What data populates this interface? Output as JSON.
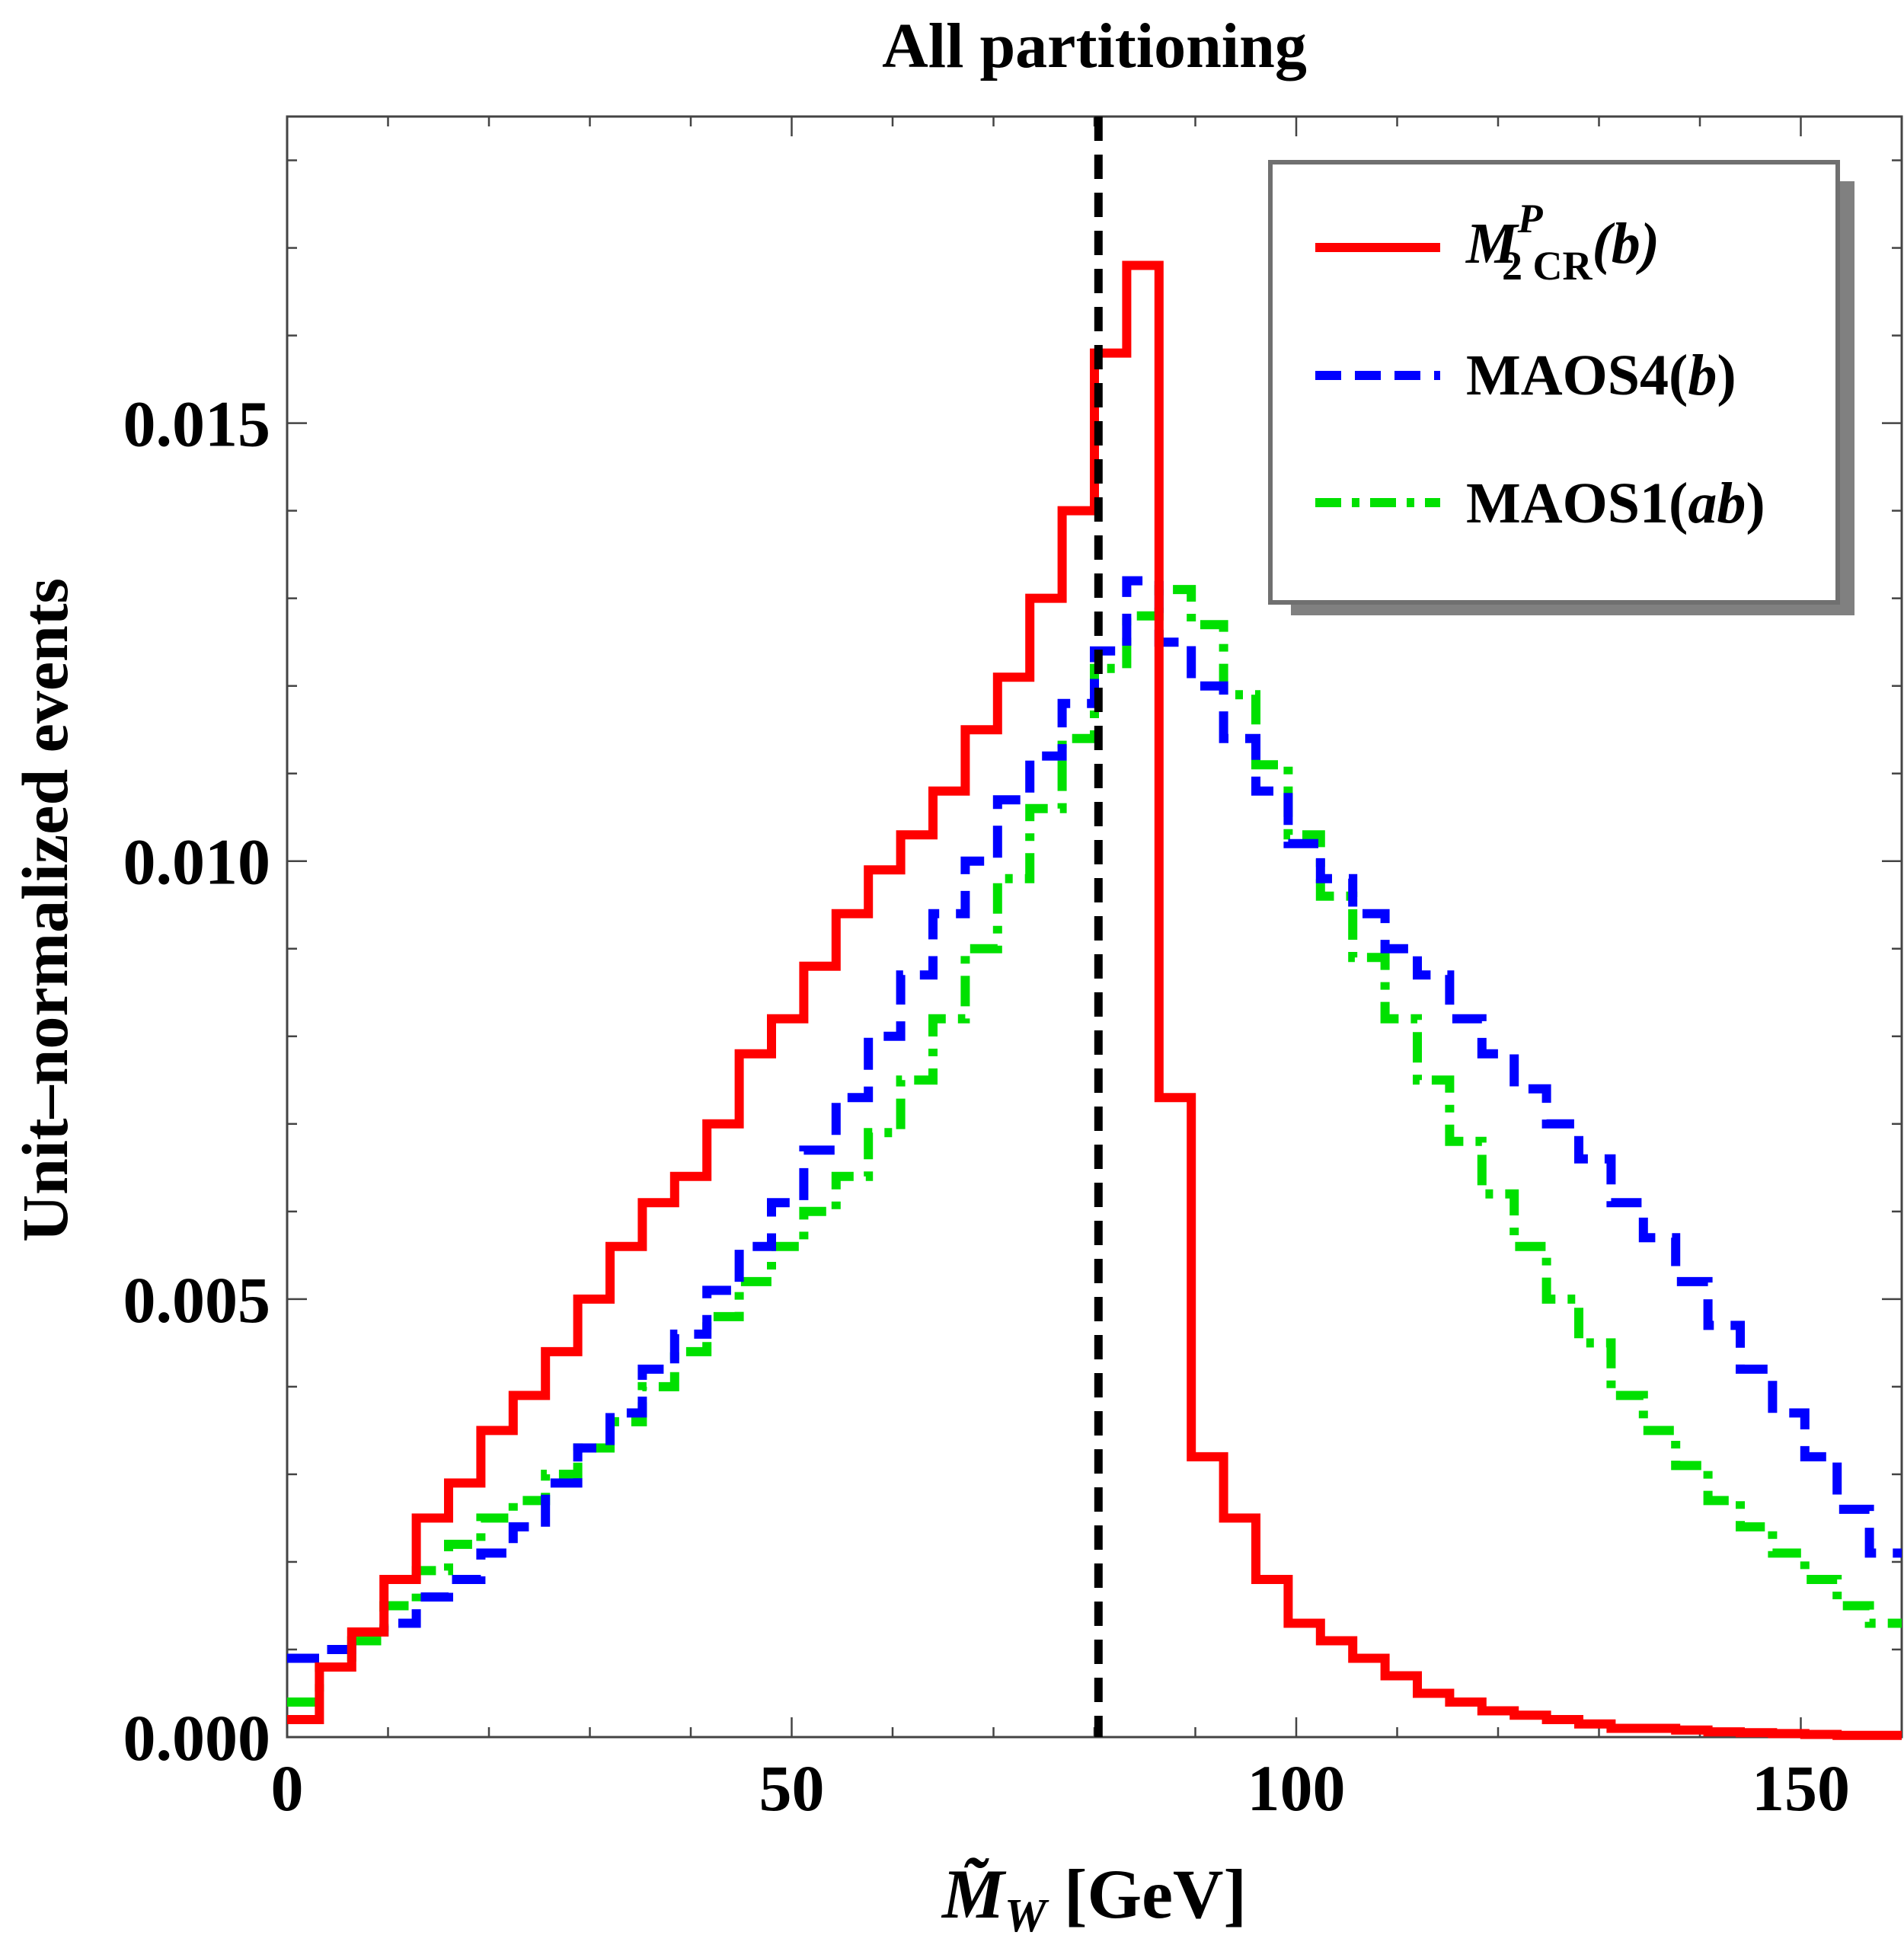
{
  "chart_data": {
    "type": "line",
    "title": "All partitioning",
    "xlabel_symbol": "M̃",
    "xlabel_sub": "W",
    "xlabel_unit": "[GeV]",
    "ylabel": "Unit–normalized events",
    "xlim": [
      0,
      160
    ],
    "ylim": [
      0,
      0.0185
    ],
    "x_ticks": [
      0,
      50,
      100,
      150
    ],
    "x_tick_labels": [
      "0",
      "50",
      "100",
      "150"
    ],
    "y_ticks": [
      0,
      0.005,
      0.01,
      0.015
    ],
    "y_tick_labels": [
      "0.000",
      "0.005",
      "0.010",
      "0.015"
    ],
    "reference_line": {
      "x": 80.4,
      "style": "dashed",
      "color": "#000000"
    },
    "bin_edges": [
      0,
      3.2,
      6.4,
      9.6,
      12.8,
      16,
      19.2,
      22.4,
      25.6,
      28.8,
      32,
      35.2,
      38.4,
      41.6,
      44.8,
      48,
      51.2,
      54.4,
      57.6,
      60.8,
      64,
      67.2,
      70.4,
      73.6,
      76.8,
      80,
      83.2,
      86.4,
      89.6,
      92.8,
      96,
      99.2,
      102.4,
      105.6,
      108.8,
      112,
      115.2,
      118.4,
      121.6,
      124.8,
      128,
      131.2,
      134.4,
      137.6,
      140.8,
      144,
      147.2,
      150.4,
      153.6,
      156.8,
      160
    ],
    "legend_position": "top-right",
    "series": [
      {
        "name": "M2CR(b)",
        "legend_main": "M",
        "legend_sub": "2 CR",
        "legend_sup": "P",
        "legend_arg": "(b)",
        "color": "#ff0000",
        "style": "solid",
        "values": [
          0.0002,
          0.0008,
          0.0012,
          0.0018,
          0.0025,
          0.0029,
          0.0035,
          0.0039,
          0.0044,
          0.005,
          0.0056,
          0.0061,
          0.0064,
          0.007,
          0.0078,
          0.0082,
          0.0088,
          0.0094,
          0.0099,
          0.0103,
          0.0108,
          0.0115,
          0.0121,
          0.013,
          0.014,
          0.0158,
          0.0168,
          0.0073,
          0.0032,
          0.0025,
          0.0018,
          0.0013,
          0.0011,
          0.0009,
          0.0007,
          0.0005,
          0.0004,
          0.0003,
          0.00025,
          0.0002,
          0.00015,
          0.0001,
          0.0001,
          8e-05,
          6e-05,
          5e-05,
          4e-05,
          3e-05,
          2e-05,
          2e-05
        ]
      },
      {
        "name": "MAOS4(b)",
        "legend_main": "MAOS4",
        "legend_arg": "b",
        "color": "#0000ff",
        "style": "dashed",
        "values": [
          0.0009,
          0.001,
          0.0012,
          0.0013,
          0.0016,
          0.0018,
          0.0021,
          0.0024,
          0.0029,
          0.0033,
          0.0037,
          0.0042,
          0.0046,
          0.0051,
          0.0056,
          0.0061,
          0.0067,
          0.0073,
          0.008,
          0.0087,
          0.0094,
          0.01,
          0.0107,
          0.0112,
          0.0118,
          0.0124,
          0.0132,
          0.0125,
          0.012,
          0.0114,
          0.0108,
          0.0102,
          0.0098,
          0.0094,
          0.009,
          0.0087,
          0.0082,
          0.0078,
          0.0074,
          0.007,
          0.0066,
          0.0061,
          0.0057,
          0.0052,
          0.0047,
          0.0042,
          0.0037,
          0.0032,
          0.0026,
          0.0021
        ]
      },
      {
        "name": "MAOS1(ab)",
        "legend_main": "MAOS1",
        "legend_arg": "ab",
        "color": "#00e000",
        "style": "dashdot",
        "values": [
          0.0004,
          0.0008,
          0.0011,
          0.0015,
          0.0019,
          0.0022,
          0.0025,
          0.0027,
          0.003,
          0.0033,
          0.0036,
          0.004,
          0.0044,
          0.0048,
          0.0052,
          0.0056,
          0.006,
          0.0064,
          0.0069,
          0.0075,
          0.0082,
          0.009,
          0.0098,
          0.0106,
          0.0114,
          0.0122,
          0.0128,
          0.0131,
          0.0127,
          0.0119,
          0.0111,
          0.0103,
          0.0096,
          0.0089,
          0.0082,
          0.0075,
          0.0068,
          0.0062,
          0.0056,
          0.005,
          0.0045,
          0.0039,
          0.0035,
          0.0031,
          0.0027,
          0.0024,
          0.0021,
          0.0018,
          0.0015,
          0.0013
        ]
      }
    ]
  }
}
